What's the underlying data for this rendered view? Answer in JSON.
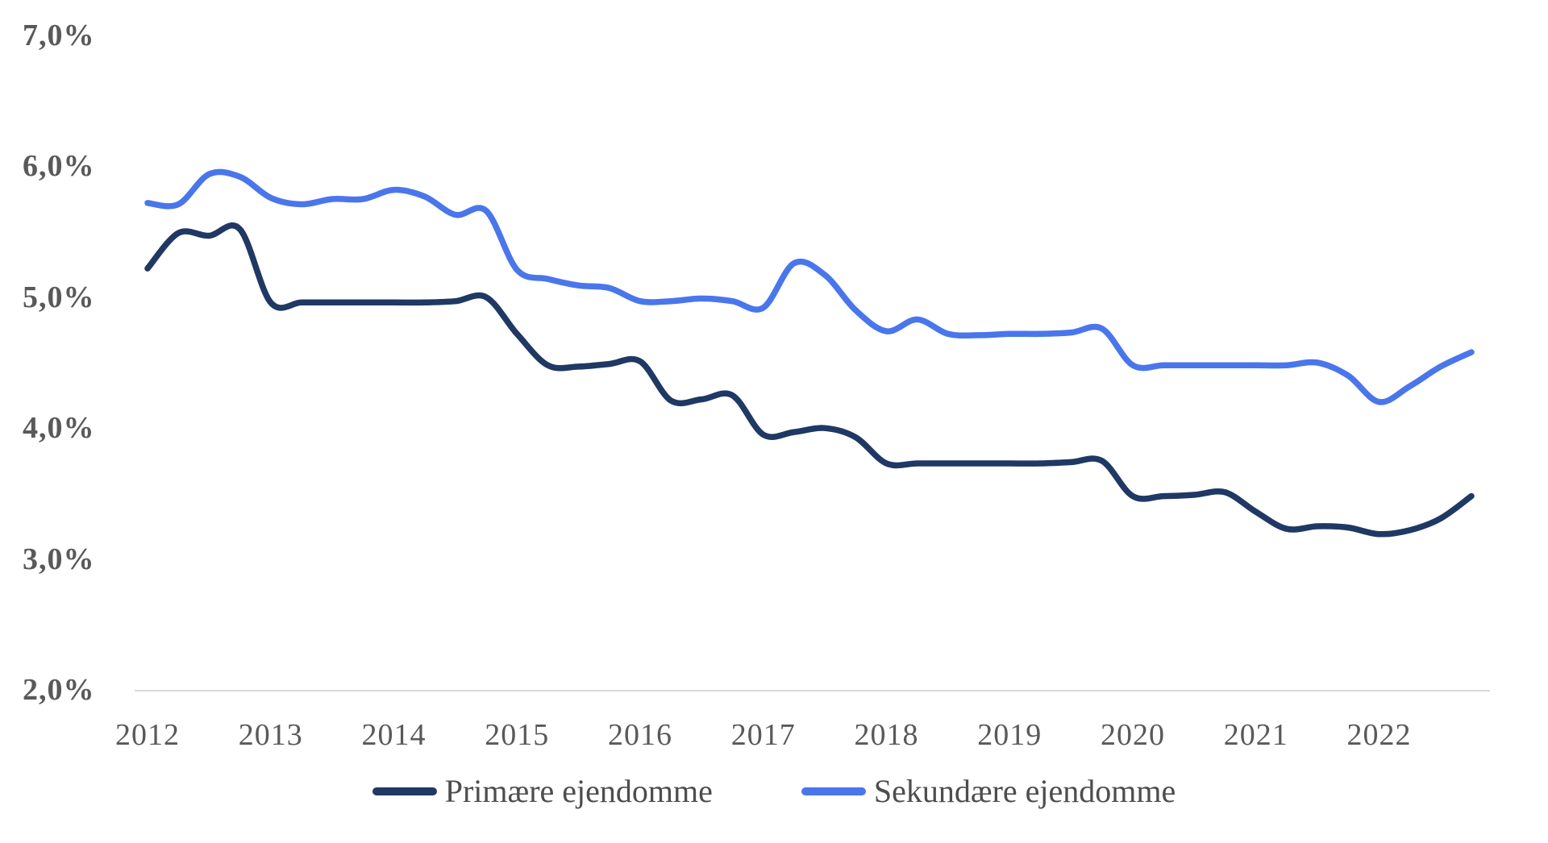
{
  "chart_data": {
    "type": "line",
    "title": "",
    "frequency": "quarterly",
    "x_year_labels": [
      "2012",
      "2013",
      "2014",
      "2015",
      "2016",
      "2017",
      "2018",
      "2019",
      "2020",
      "2021",
      "2022"
    ],
    "points_per_year": 4,
    "series": [
      {
        "name": "Primære ejendomme",
        "color": "#1F3864",
        "values": [
          5.22,
          5.49,
          5.47,
          5.52,
          4.96,
          4.96,
          4.96,
          4.96,
          4.96,
          4.96,
          4.97,
          5.0,
          4.72,
          4.48,
          4.47,
          4.49,
          4.51,
          4.21,
          4.22,
          4.25,
          3.95,
          3.97,
          4.0,
          3.93,
          3.73,
          3.73,
          3.73,
          3.73,
          3.73,
          3.73,
          3.74,
          3.75,
          3.48,
          3.48,
          3.49,
          3.51,
          3.36,
          3.23,
          3.25,
          3.24,
          3.19,
          3.22,
          3.31,
          3.48
        ]
      },
      {
        "name": "Sekundære ejendomme",
        "color": "#4A76EC",
        "values": [
          5.72,
          5.71,
          5.94,
          5.92,
          5.76,
          5.71,
          5.75,
          5.75,
          5.82,
          5.77,
          5.63,
          5.66,
          5.21,
          5.14,
          5.09,
          5.07,
          4.97,
          4.97,
          4.99,
          4.97,
          4.92,
          5.26,
          5.17,
          4.9,
          4.74,
          4.83,
          4.72,
          4.71,
          4.72,
          4.72,
          4.73,
          4.76,
          4.48,
          4.48,
          4.48,
          4.48,
          4.48,
          4.48,
          4.5,
          4.4,
          4.2,
          4.32,
          4.47,
          4.58
        ]
      }
    ],
    "y_axis": {
      "tick_labels": [
        "7,0%",
        "6,0%",
        "5,0%",
        "4,0%",
        "3,0%",
        "2,0%"
      ],
      "tick_values": [
        7,
        6,
        5,
        4,
        3,
        2
      ],
      "min": 2,
      "max": 7,
      "number_format": "0,0%"
    },
    "legend": {
      "position": "bottom",
      "items": [
        "Primære ejendomme",
        "Sekundære ejendomme"
      ]
    },
    "grid": "none",
    "axis_line_color": "#D9D9D9",
    "text_color": "#595959",
    "background": "#FFFFFF",
    "line_width": 7.5
  }
}
